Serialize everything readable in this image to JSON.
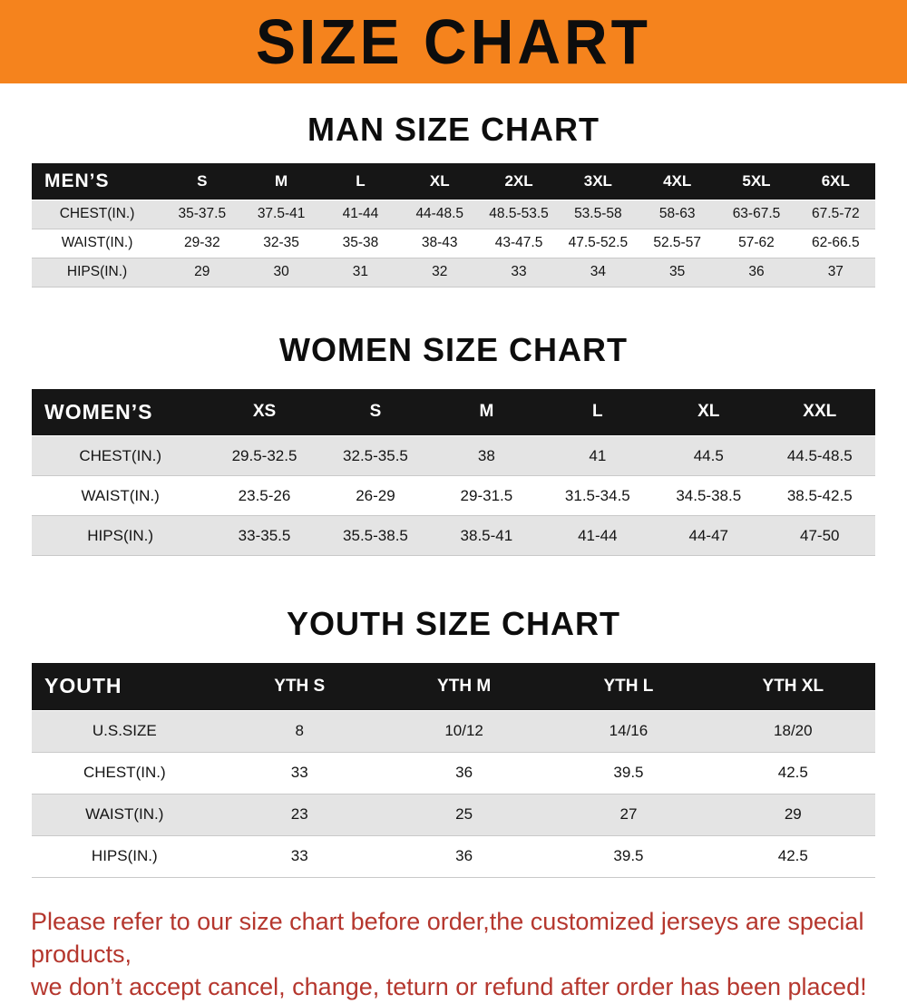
{
  "banner": {
    "title": "SIZE CHART"
  },
  "colors": {
    "banner_bg": "#f5831d",
    "table_header_bg": "#161616",
    "row_shaded": "#e4e4e4",
    "footer_text": "#b5372e"
  },
  "sections": [
    {
      "title": "MAN SIZE CHART",
      "table": {
        "first_col_width": "15.5%",
        "header": [
          "MEN’S",
          "S",
          "M",
          "L",
          "XL",
          "2XL",
          "3XL",
          "4XL",
          "5XL",
          "6XL"
        ],
        "rows": [
          [
            "CHEST(IN.)",
            "35-37.5",
            "37.5-41",
            "41-44",
            "44-48.5",
            "48.5-53.5",
            "53.5-58",
            "58-63",
            "63-67.5",
            "67.5-72"
          ],
          [
            "WAIST(IN.)",
            "29-32",
            "32-35",
            "35-38",
            "38-43",
            "43-47.5",
            "47.5-52.5",
            "52.5-57",
            "57-62",
            "62-66.5"
          ],
          [
            "HIPS(IN.)",
            "29",
            "30",
            "31",
            "32",
            "33",
            "34",
            "35",
            "36",
            "37"
          ]
        ]
      }
    },
    {
      "title": "WOMEN SIZE CHART",
      "table": {
        "first_col_width": "21%",
        "header": [
          "WOMEN’S",
          "XS",
          "S",
          "M",
          "L",
          "XL",
          "XXL"
        ],
        "rows": [
          [
            "CHEST(IN.)",
            "29.5-32.5",
            "32.5-35.5",
            "38",
            "41",
            "44.5",
            "44.5-48.5"
          ],
          [
            "WAIST(IN.)",
            "23.5-26",
            "26-29",
            "29-31.5",
            "31.5-34.5",
            "34.5-38.5",
            "38.5-42.5"
          ],
          [
            "HIPS(IN.)",
            "33-35.5",
            "35.5-38.5",
            "38.5-41",
            "41-44",
            "44-47",
            "47-50"
          ]
        ]
      }
    },
    {
      "title": "YOUTH SIZE CHART",
      "table": {
        "first_col_width": "22%",
        "header": [
          "YOUTH",
          "YTH S",
          "YTH M",
          "YTH L",
          "YTH XL"
        ],
        "rows": [
          [
            "U.S.SIZE",
            "8",
            "10/12",
            "14/16",
            "18/20"
          ],
          [
            "CHEST(IN.)",
            "33",
            "36",
            "39.5",
            "42.5"
          ],
          [
            "WAIST(IN.)",
            "23",
            "25",
            "27",
            "29"
          ],
          [
            "HIPS(IN.)",
            "33",
            "36",
            "39.5",
            "42.5"
          ]
        ]
      }
    }
  ],
  "footer": {
    "lines": [
      "Please refer to our size chart before order,the customized jerseys are special products,",
      "we don’t accept cancel, change, teturn or refund after order has been placed!"
    ]
  }
}
